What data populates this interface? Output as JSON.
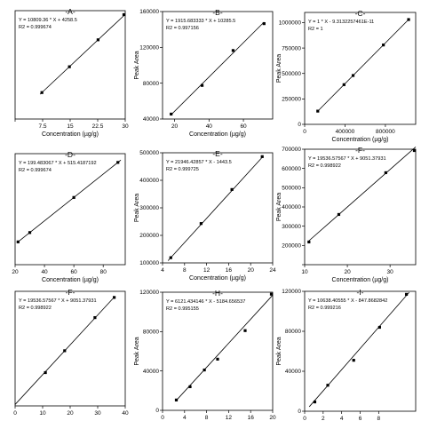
{
  "chart_data": [
    {
      "type": "scatter",
      "title": "-A-",
      "equation": "Y = 10809.36 * X + 4258.5",
      "r2": "R2 = 0.999674",
      "xlabel": "Concentration (µg/g)",
      "ylabel": "",
      "xlim": [
        0,
        30
      ],
      "ylim": [
        0,
        340000
      ],
      "xticks": [
        {
          "v": 0,
          "t": ""
        },
        {
          "v": 7.5,
          "t": "7.5"
        },
        {
          "v": 15,
          "t": "15"
        },
        {
          "v": 22.5,
          "t": "22.5"
        },
        {
          "v": 30,
          "t": "30"
        }
      ],
      "yticks": [],
      "points": [
        {
          "x": 7.3,
          "y": 83000
        },
        {
          "x": 14.8,
          "y": 164000
        },
        {
          "x": 22.6,
          "y": 248500
        },
        {
          "x": 29.9,
          "y": 327500
        }
      ],
      "line": [
        [
          6.8,
          77700
        ],
        [
          30,
          328500
        ]
      ]
    },
    {
      "type": "scatter",
      "title": "-B-",
      "equation": "Y = 1915.683333 * X + 10285.5",
      "r2": "R2 = 0.997156",
      "xlabel": "Concentration (µg/g)",
      "ylabel": "Peak Area",
      "xlim": [
        13,
        77
      ],
      "ylim": [
        40000,
        160000
      ],
      "xticks": [
        {
          "v": 20,
          "t": "20"
        },
        {
          "v": 40,
          "t": "40"
        },
        {
          "v": 60,
          "t": "60"
        }
      ],
      "yticks": [
        {
          "v": 40000,
          "t": "40000"
        },
        {
          "v": 80000,
          "t": "80000"
        },
        {
          "v": 120000,
          "t": "120000"
        },
        {
          "v": 160000,
          "t": "160000"
        }
      ],
      "points": [
        {
          "x": 18,
          "y": 45500
        },
        {
          "x": 36,
          "y": 77500
        },
        {
          "x": 54,
          "y": 116500
        },
        {
          "x": 72,
          "y": 146500
        }
      ],
      "line": [
        [
          18,
          44800
        ],
        [
          72,
          148200
        ]
      ]
    },
    {
      "type": "scatter",
      "title": "-C-",
      "equation": "Y = 1 * X - 9.3132257461E-11",
      "r2": "R2 = 1",
      "xlabel": "Concentration (µg/g)",
      "ylabel": "Peak Area",
      "xlim": [
        0,
        1100000
      ],
      "ylim": [
        0,
        1100000
      ],
      "xticks": [
        {
          "v": 0,
          "t": "0"
        },
        {
          "v": 400000,
          "t": "400000"
        },
        {
          "v": 800000,
          "t": "800000"
        }
      ],
      "yticks": [
        {
          "v": 0,
          "t": "0"
        },
        {
          "v": 250000,
          "t": "250000"
        },
        {
          "v": 500000,
          "t": "500000"
        },
        {
          "v": 750000,
          "t": "750000"
        },
        {
          "v": 1000000,
          "t": "1000000"
        }
      ],
      "points": [
        {
          "x": 130000,
          "y": 130000
        },
        {
          "x": 390000,
          "y": 390000
        },
        {
          "x": 480000,
          "y": 480000
        },
        {
          "x": 780000,
          "y": 780000
        },
        {
          "x": 1030000,
          "y": 1030000
        }
      ],
      "line": [
        [
          130000,
          130000
        ],
        [
          1030000,
          1030000
        ]
      ]
    },
    {
      "type": "scatter",
      "title": "-D-",
      "equation": "Y = 199.483067 * X + 515.4187192",
      "r2": "R2 = 0.999674",
      "xlabel": "Concentration (µg/g)",
      "ylabel": "",
      "xlim": [
        20,
        95
      ],
      "ylim": [
        1000,
        20000
      ],
      "xticks": [
        {
          "v": 20,
          "t": "20"
        },
        {
          "v": 40,
          "t": "40"
        },
        {
          "v": 60,
          "t": "60"
        },
        {
          "v": 80,
          "t": "80"
        }
      ],
      "yticks": [],
      "points": [
        {
          "x": 22,
          "y": 4900
        },
        {
          "x": 30,
          "y": 6500
        },
        {
          "x": 60,
          "y": 12500
        },
        {
          "x": 90,
          "y": 18500
        }
      ],
      "line": [
        [
          22,
          4900
        ],
        [
          92,
          18900
        ]
      ]
    },
    {
      "type": "scatter",
      "title": "-E-",
      "equation": "Y = 21946.42857 * X - 1443.5",
      "r2": "R2 = 0.999725",
      "xlabel": "Concentration (µg/g)",
      "ylabel": "Peak Area",
      "xlim": [
        4,
        24
      ],
      "ylim": [
        100000,
        500000
      ],
      "xticks": [
        {
          "v": 4,
          "t": "4"
        },
        {
          "v": 8,
          "t": "8"
        },
        {
          "v": 12,
          "t": "12"
        },
        {
          "v": 16,
          "t": "16"
        },
        {
          "v": 20,
          "t": "20"
        },
        {
          "v": 24,
          "t": "24"
        }
      ],
      "yticks": [
        {
          "v": 100000,
          "t": "100000"
        },
        {
          "v": 200000,
          "t": "200000"
        },
        {
          "v": 300000,
          "t": "300000"
        },
        {
          "v": 400000,
          "t": "400000"
        },
        {
          "v": 500000,
          "t": "500000"
        }
      ],
      "points": [
        {
          "x": 5.5,
          "y": 119000
        },
        {
          "x": 11,
          "y": 243000
        },
        {
          "x": 16.6,
          "y": 366500
        },
        {
          "x": 22.1,
          "y": 486000
        }
      ],
      "line": [
        [
          5,
          108000
        ],
        [
          22.3,
          488000
        ]
      ]
    },
    {
      "type": "scatter",
      "title": "-F-",
      "equation": "Y = 19536.57567 * X + 9051.37931",
      "r2": "R2 = 0.998922",
      "xlabel": "Concentration (µg/g)",
      "ylabel": "Peak Area",
      "xlim": [
        10,
        36
      ],
      "ylim": [
        100000,
        700000
      ],
      "xticks": [
        {
          "v": 10,
          "t": "10"
        },
        {
          "v": 20,
          "t": "20"
        },
        {
          "v": 30,
          "t": "30"
        }
      ],
      "yticks": [
        {
          "v": 100000,
          "t": ""
        },
        {
          "v": 200000,
          "t": "200000"
        },
        {
          "v": 300000,
          "t": "300000"
        },
        {
          "v": 400000,
          "t": "400000"
        },
        {
          "v": 500000,
          "t": "500000"
        },
        {
          "v": 600000,
          "t": "600000"
        },
        {
          "v": 700000,
          "t": "700000"
        }
      ],
      "points": [
        {
          "x": 11,
          "y": 218000
        },
        {
          "x": 18,
          "y": 361000
        },
        {
          "x": 29,
          "y": 578000
        },
        {
          "x": 36,
          "y": 710000
        }
      ],
      "line": [
        [
          11,
          224000
        ],
        [
          36,
          712000
        ]
      ]
    },
    {
      "type": "scatter",
      "title": "-F-",
      "equation": "Y = 19536.57567 * X + 9051.37931",
      "r2": "R2 = 0.998922",
      "xlabel": "",
      "ylabel": "",
      "xlim": [
        0,
        40
      ],
      "ylim": [
        0,
        750000
      ],
      "xticks": [
        {
          "v": 0,
          "t": "0"
        },
        {
          "v": 10,
          "t": "10"
        },
        {
          "v": 20,
          "t": "20"
        },
        {
          "v": 30,
          "t": "30"
        },
        {
          "v": 40,
          "t": "40"
        }
      ],
      "yticks": [],
      "points": [
        {
          "x": 11,
          "y": 218000
        },
        {
          "x": 18,
          "y": 361000
        },
        {
          "x": 29,
          "y": 578000
        },
        {
          "x": 36,
          "y": 710000
        }
      ],
      "line": [
        [
          0,
          9051
        ],
        [
          36,
          712000
        ]
      ]
    },
    {
      "type": "scatter",
      "title": "-H-",
      "equation": "Y = 6121.434146 * X - 5184.656537",
      "r2": "R2 = 0.995155",
      "xlabel": "",
      "ylabel": "Peak Area",
      "xlim": [
        0,
        20
      ],
      "ylim": [
        0,
        120000
      ],
      "xticks": [
        {
          "v": 0,
          "t": "0"
        },
        {
          "v": 4,
          "t": "4"
        },
        {
          "v": 8,
          "t": "8"
        },
        {
          "v": 12,
          "t": "12"
        },
        {
          "v": 16,
          "t": "16"
        },
        {
          "v": 20,
          "t": "20"
        }
      ],
      "yticks": [
        {
          "v": 0,
          "t": "0"
        },
        {
          "v": 40000,
          "t": "40000"
        },
        {
          "v": 80000,
          "t": "80000"
        },
        {
          "v": 120000,
          "t": "120000"
        }
      ],
      "points": [
        {
          "x": 2.5,
          "y": 10500
        },
        {
          "x": 5,
          "y": 24000
        },
        {
          "x": 7.6,
          "y": 41000
        },
        {
          "x": 10,
          "y": 52000
        },
        {
          "x": 15,
          "y": 81000
        },
        {
          "x": 20,
          "y": 118000
        }
      ],
      "line": [
        [
          2.5,
          10100
        ],
        [
          20,
          117000
        ]
      ]
    },
    {
      "type": "scatter",
      "title": "-I-",
      "equation": "Y = 10638.40555 * X - 847.8682842",
      "r2": "R2 = 0.999216",
      "xlabel": "",
      "ylabel": "Peak Area",
      "xlim": [
        0,
        12
      ],
      "ylim": [
        0,
        120000
      ],
      "xticks": [
        {
          "v": 0,
          "t": "0"
        },
        {
          "v": 2,
          "t": "2"
        },
        {
          "v": 4,
          "t": "4"
        },
        {
          "v": 6,
          "t": "6"
        },
        {
          "v": 8,
          "t": "8"
        }
      ],
      "yticks": [
        {
          "v": 0,
          "t": "0"
        },
        {
          "v": 40000,
          "t": "40000"
        },
        {
          "v": 80000,
          "t": "80000"
        },
        {
          "v": 120000,
          "t": "120000"
        }
      ],
      "points": [
        {
          "x": 1.1,
          "y": 9300
        },
        {
          "x": 2.5,
          "y": 26000
        },
        {
          "x": 5.3,
          "y": 51000
        },
        {
          "x": 8.1,
          "y": 84000
        },
        {
          "x": 11,
          "y": 117000
        }
      ],
      "line": [
        [
          0.5,
          4500
        ],
        [
          11.3,
          119000
        ]
      ]
    }
  ]
}
